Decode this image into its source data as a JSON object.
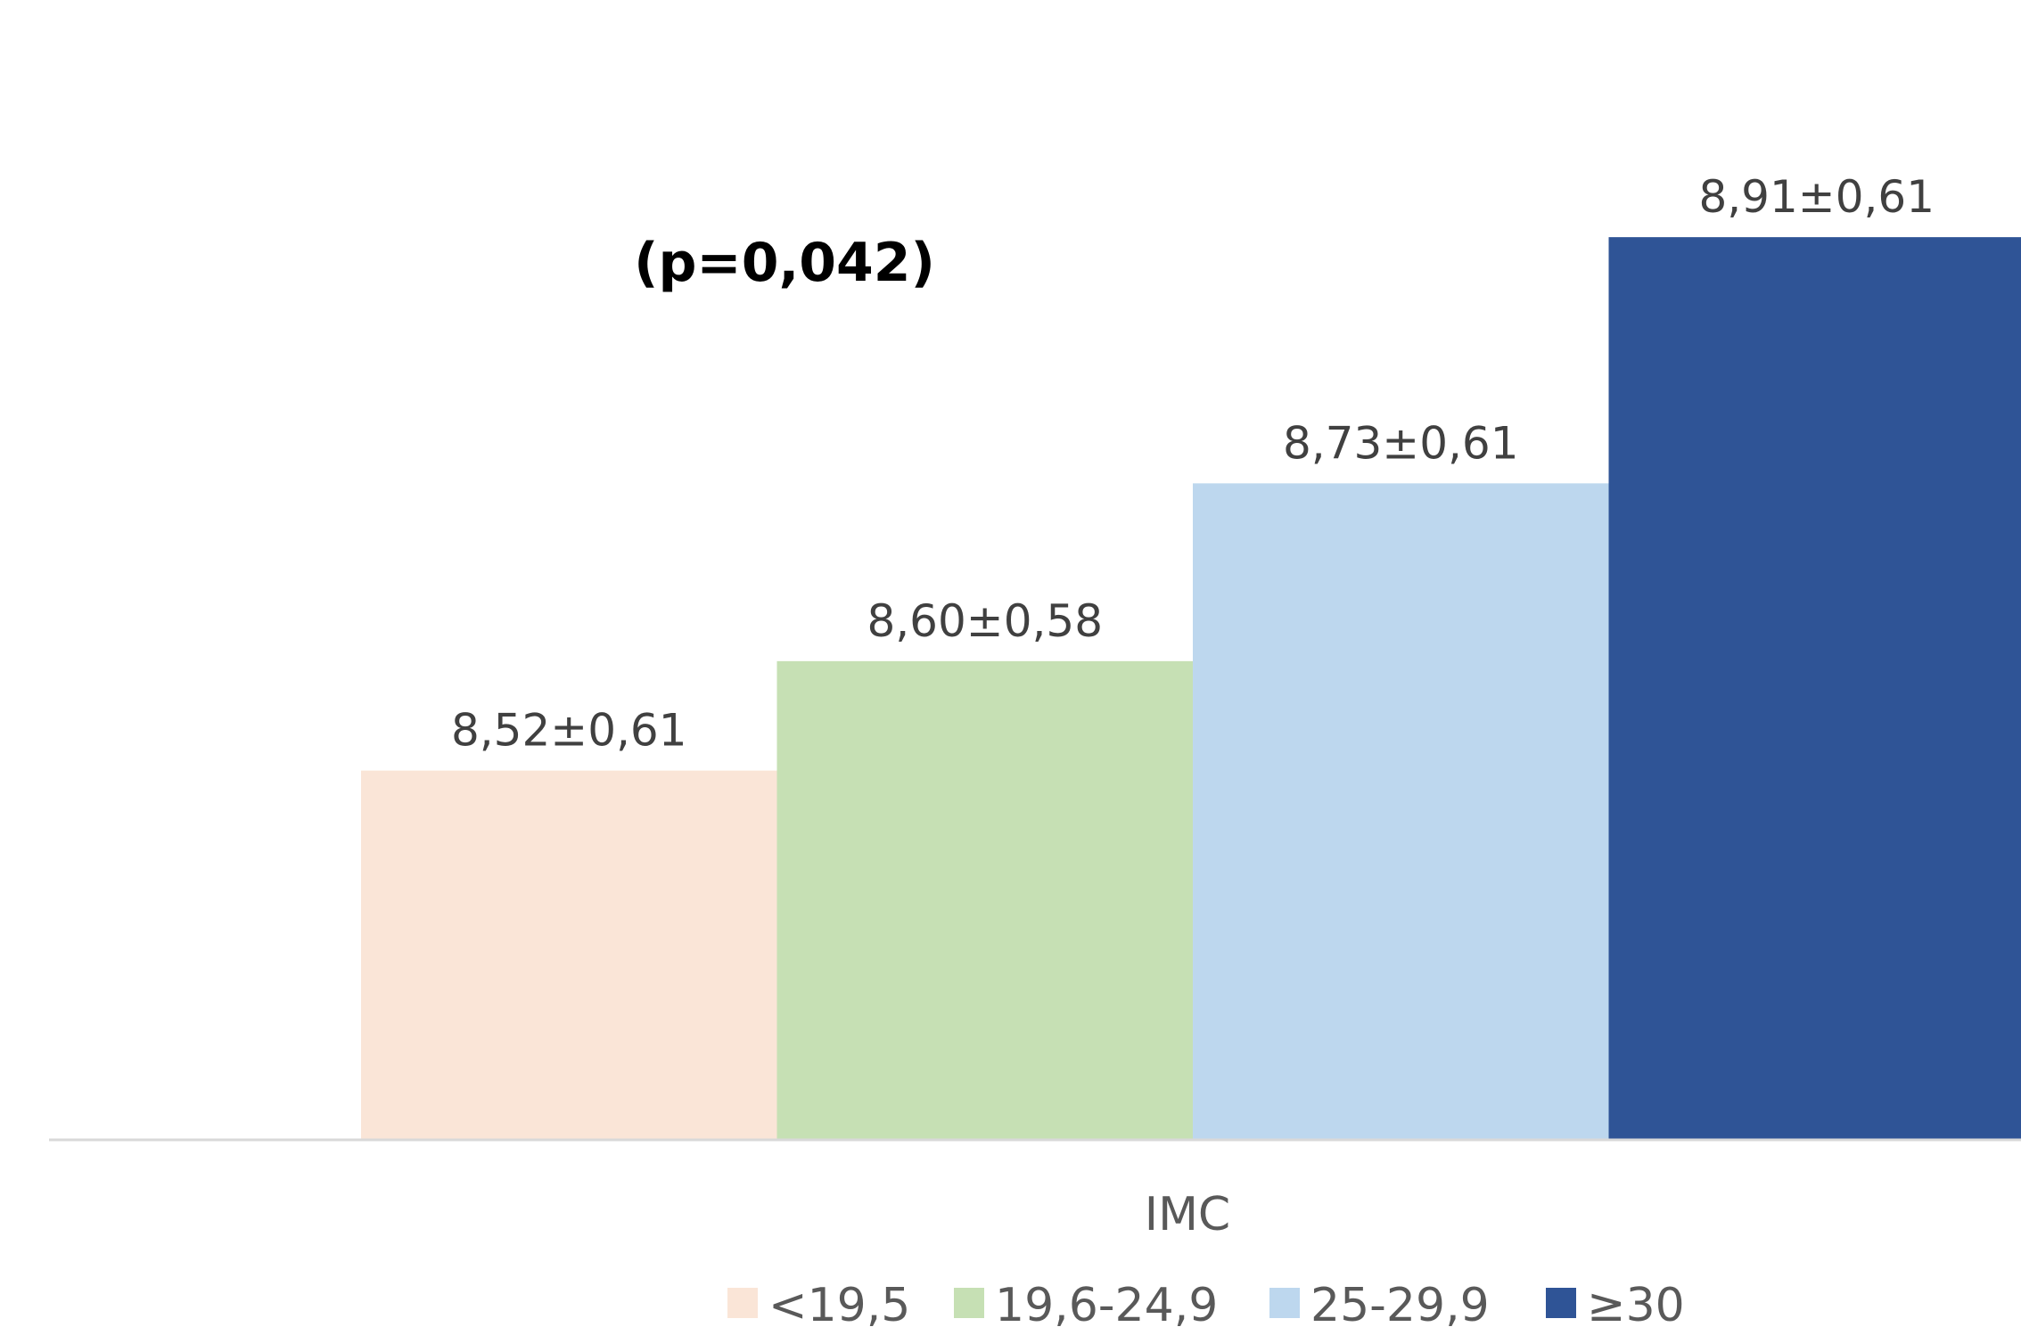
{
  "chart_data": {
    "type": "bar",
    "xlabel": "IMC",
    "category": "IMC",
    "annotation": "(p=0,042)",
    "ylim": [
      8.25,
      9.0
    ],
    "legend_position": "bottom",
    "grid": false,
    "series": [
      {
        "name": "<19,5",
        "value": 8.52,
        "label": "8,52±0,61",
        "color": "#FAE5D7"
      },
      {
        "name": "19,6-24,9",
        "value": 8.6,
        "label": "8,60±0,58",
        "color": "#C6E0B4"
      },
      {
        "name": "25-29,9",
        "value": 8.73,
        "label": "8,73±0,61",
        "color": "#BDD7EE"
      },
      {
        "name": "≥30",
        "value": 8.91,
        "label": "8,91±0,61",
        "color": "#2F5496"
      }
    ]
  }
}
